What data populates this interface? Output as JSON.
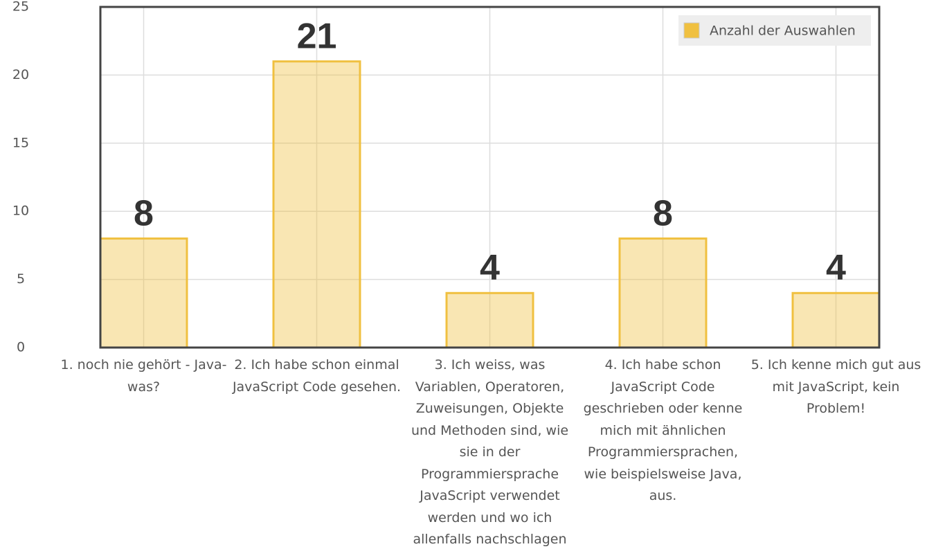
{
  "chart_data": {
    "type": "bar",
    "categories": [
      "1. noch nie gehört - Java-was?",
      "2. Ich habe schon einmal JavaScript Code gesehen.",
      "3. Ich weiss, was Variablen, Operatoren, Zuweisungen, Objekte und Methoden sind, wie sie in der Programmiersprache JavaScript verwendet werden und wo ich allenfalls nachschlagen kann.",
      "4. Ich habe schon JavaScript Code geschrieben oder kenne mich mit ähnlichen Programmiersprachen, wie beispielsweise Java, aus.",
      "5. Ich kenne mich gut aus mit JavaScript, kein Problem!"
    ],
    "series": [
      {
        "name": "Anzahl der Auswahlen",
        "color": "#f0c040",
        "values": [
          8,
          21,
          4,
          8,
          4
        ]
      }
    ],
    "ylim": [
      0,
      25
    ],
    "yticks": [
      0,
      5,
      10,
      15,
      20,
      25
    ],
    "grid": true,
    "legend": "top-right"
  }
}
